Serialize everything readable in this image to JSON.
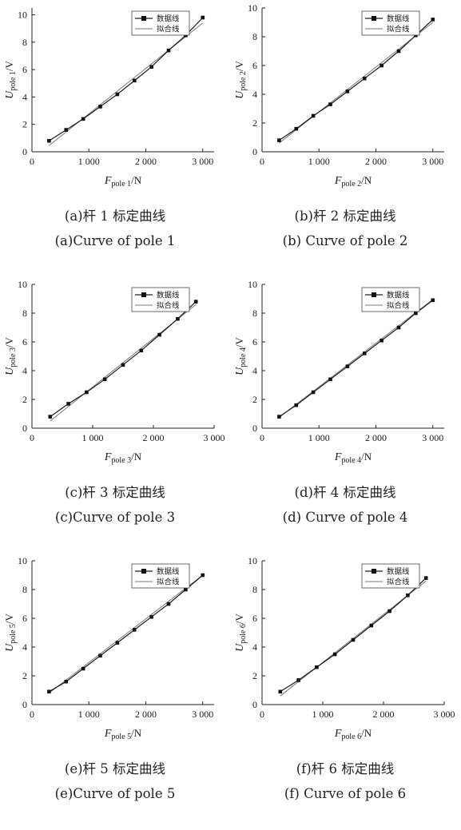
{
  "figures": [
    {
      "caption_cn": "(a)杆 1 标定曲线",
      "caption_en": "(a)Curve of pole 1"
    },
    {
      "caption_cn": "(b)杆 2 标定曲线",
      "caption_en": "(b) Curve of pole 2"
    },
    {
      "caption_cn": "(c)杆 3 标定曲线",
      "caption_en": "(c)Curve of pole 3"
    },
    {
      "caption_cn": "(d)杆 4 标定曲线",
      "caption_en": "(d) Curve of pole 4"
    },
    {
      "caption_cn": "(e)杆 5 标定曲线",
      "caption_en": "(e)Curve of pole 5"
    },
    {
      "caption_cn": "(f)杆 6 标定曲线",
      "caption_en": "(f) Curve of pole 6"
    }
  ],
  "chart_data": [
    {
      "type": "line",
      "xlabel": {
        "main": "F",
        "sub": "pole 1",
        "unit": "/N"
      },
      "ylabel": {
        "main": "U",
        "sub": "pole 1",
        "unit": "/V"
      },
      "xlim": [
        0,
        3200
      ],
      "ylim": [
        0,
        10.5
      ],
      "xticks": [
        0,
        1000,
        2000,
        3000
      ],
      "xtick_labels": [
        "0",
        "1 000",
        "2 000",
        "3 000"
      ],
      "yticks": [
        0,
        2,
        4,
        6,
        8,
        10
      ],
      "ytick_labels": [
        "0",
        "2",
        "4",
        "6",
        "8",
        "10"
      ],
      "legend": {
        "position": "top-right",
        "entries": [
          "数据线",
          "拟合线"
        ]
      },
      "series": [
        {
          "name": "数据线",
          "marker": "square",
          "x": [
            300,
            600,
            900,
            1200,
            1500,
            1800,
            2100,
            2400,
            2700,
            3000
          ],
          "y": [
            0.8,
            1.6,
            2.4,
            3.3,
            4.2,
            5.2,
            6.2,
            7.4,
            8.5,
            9.8
          ]
        },
        {
          "name": "拟合线",
          "x": [
            300,
            3000
          ],
          "y": [
            0.45,
            9.4
          ]
        }
      ]
    },
    {
      "type": "line",
      "xlabel": {
        "main": "F",
        "sub": "pole 2",
        "unit": "/N"
      },
      "ylabel": {
        "main": "U",
        "sub": "pole 2",
        "unit": "/V"
      },
      "xlim": [
        0,
        3200
      ],
      "ylim": [
        0,
        10
      ],
      "xticks": [
        0,
        1000,
        2000,
        3000
      ],
      "xtick_labels": [
        "0",
        "1 000",
        "2 000",
        "3 000"
      ],
      "yticks": [
        0,
        2,
        4,
        6,
        8,
        10
      ],
      "ytick_labels": [
        "0",
        "2",
        "4",
        "6",
        "8",
        "10"
      ],
      "legend": {
        "position": "top-right",
        "entries": [
          "数据线",
          "拟合线"
        ]
      },
      "series": [
        {
          "name": "数据线",
          "marker": "square",
          "x": [
            300,
            600,
            900,
            1200,
            1500,
            1800,
            2100,
            2400,
            2700,
            3000
          ],
          "y": [
            0.8,
            1.6,
            2.5,
            3.3,
            4.2,
            5.1,
            6.0,
            7.0,
            8.1,
            9.2
          ]
        },
        {
          "name": "拟合线",
          "x": [
            300,
            3000
          ],
          "y": [
            0.6,
            9.0
          ]
        }
      ]
    },
    {
      "type": "line",
      "xlabel": {
        "main": "F",
        "sub": "pole 3",
        "unit": "/N"
      },
      "ylabel": {
        "main": "U",
        "sub": "pole 3",
        "unit": "/V"
      },
      "xlim": [
        0,
        3000
      ],
      "ylim": [
        0,
        10
      ],
      "xticks": [
        0,
        1000,
        2000,
        3000
      ],
      "xtick_labels": [
        "0",
        "1 000",
        "2 000",
        "3 000"
      ],
      "yticks": [
        0,
        2,
        4,
        6,
        8,
        10
      ],
      "ytick_labels": [
        "0",
        "2",
        "4",
        "6",
        "8",
        "10"
      ],
      "legend": {
        "position": "top-right",
        "entries": [
          "数据线",
          "拟合线"
        ]
      },
      "series": [
        {
          "name": "数据线",
          "marker": "square",
          "x": [
            300,
            600,
            900,
            1200,
            1500,
            1800,
            2100,
            2400,
            2700
          ],
          "y": [
            0.8,
            1.7,
            2.5,
            3.4,
            4.4,
            5.4,
            6.5,
            7.6,
            8.8
          ]
        },
        {
          "name": "拟合线",
          "x": [
            300,
            2700
          ],
          "y": [
            0.5,
            8.6
          ]
        }
      ]
    },
    {
      "type": "line",
      "xlabel": {
        "main": "F",
        "sub": "pole 4",
        "unit": "/N"
      },
      "ylabel": {
        "main": "U",
        "sub": "pole 4",
        "unit": "/V"
      },
      "xlim": [
        0,
        3200
      ],
      "ylim": [
        0,
        10
      ],
      "xticks": [
        0,
        1000,
        2000,
        3000
      ],
      "xtick_labels": [
        "0",
        "1 000",
        "2 000",
        "3 000"
      ],
      "yticks": [
        0,
        2,
        4,
        6,
        8,
        10
      ],
      "ytick_labels": [
        "0",
        "2",
        "4",
        "6",
        "8",
        "10"
      ],
      "legend": {
        "position": "top-right",
        "entries": [
          "数据线",
          "拟合线"
        ]
      },
      "series": [
        {
          "name": "数据线",
          "marker": "square",
          "x": [
            300,
            600,
            900,
            1200,
            1500,
            1800,
            2100,
            2400,
            2700,
            3000
          ],
          "y": [
            0.8,
            1.6,
            2.5,
            3.4,
            4.3,
            5.2,
            6.1,
            7.0,
            8.0,
            8.9
          ]
        },
        {
          "name": "拟合线",
          "x": [
            300,
            3000
          ],
          "y": [
            0.75,
            8.95
          ]
        }
      ]
    },
    {
      "type": "line",
      "xlabel": {
        "main": "F",
        "sub": "pole 5",
        "unit": "/N"
      },
      "ylabel": {
        "main": "U",
        "sub": "pole 5",
        "unit": "/V"
      },
      "xlim": [
        0,
        3200
      ],
      "ylim": [
        0,
        10
      ],
      "xticks": [
        0,
        1000,
        2000,
        3000
      ],
      "xtick_labels": [
        "0",
        "1 000",
        "2 000",
        "3 000"
      ],
      "yticks": [
        0,
        2,
        4,
        6,
        8,
        10
      ],
      "ytick_labels": [
        "0",
        "2",
        "4",
        "6",
        "8",
        "10"
      ],
      "legend": {
        "position": "top-right",
        "entries": [
          "数据线",
          "拟合线"
        ]
      },
      "series": [
        {
          "name": "数据线",
          "marker": "square",
          "x": [
            300,
            600,
            900,
            1200,
            1500,
            1800,
            2100,
            2400,
            2700,
            3000
          ],
          "y": [
            0.9,
            1.6,
            2.5,
            3.4,
            4.3,
            5.2,
            6.1,
            7.0,
            8.0,
            9.0
          ]
        },
        {
          "name": "拟合线",
          "x": [
            300,
            3000
          ],
          "y": [
            0.8,
            9.0
          ]
        }
      ]
    },
    {
      "type": "line",
      "xlabel": {
        "main": "F",
        "sub": "pole 6",
        "unit": "/N"
      },
      "ylabel": {
        "main": "U",
        "sub": "pole 6",
        "unit": "/V"
      },
      "xlim": [
        0,
        3000
      ],
      "ylim": [
        0,
        10
      ],
      "xticks": [
        0,
        1000,
        2000,
        3000
      ],
      "xtick_labels": [
        "0",
        "1 000",
        "2 000",
        "3 000"
      ],
      "yticks": [
        0,
        2,
        4,
        6,
        8,
        10
      ],
      "ytick_labels": [
        "0",
        "2",
        "4",
        "6",
        "8",
        "10"
      ],
      "legend": {
        "position": "top-right",
        "entries": [
          "数据线",
          "拟合线"
        ]
      },
      "series": [
        {
          "name": "数据线",
          "marker": "square",
          "x": [
            300,
            600,
            900,
            1200,
            1500,
            1800,
            2100,
            2400,
            2700
          ],
          "y": [
            0.9,
            1.7,
            2.6,
            3.5,
            4.5,
            5.5,
            6.5,
            7.6,
            8.8
          ]
        },
        {
          "name": "拟合线",
          "x": [
            300,
            2700
          ],
          "y": [
            0.6,
            8.6
          ]
        }
      ]
    }
  ]
}
